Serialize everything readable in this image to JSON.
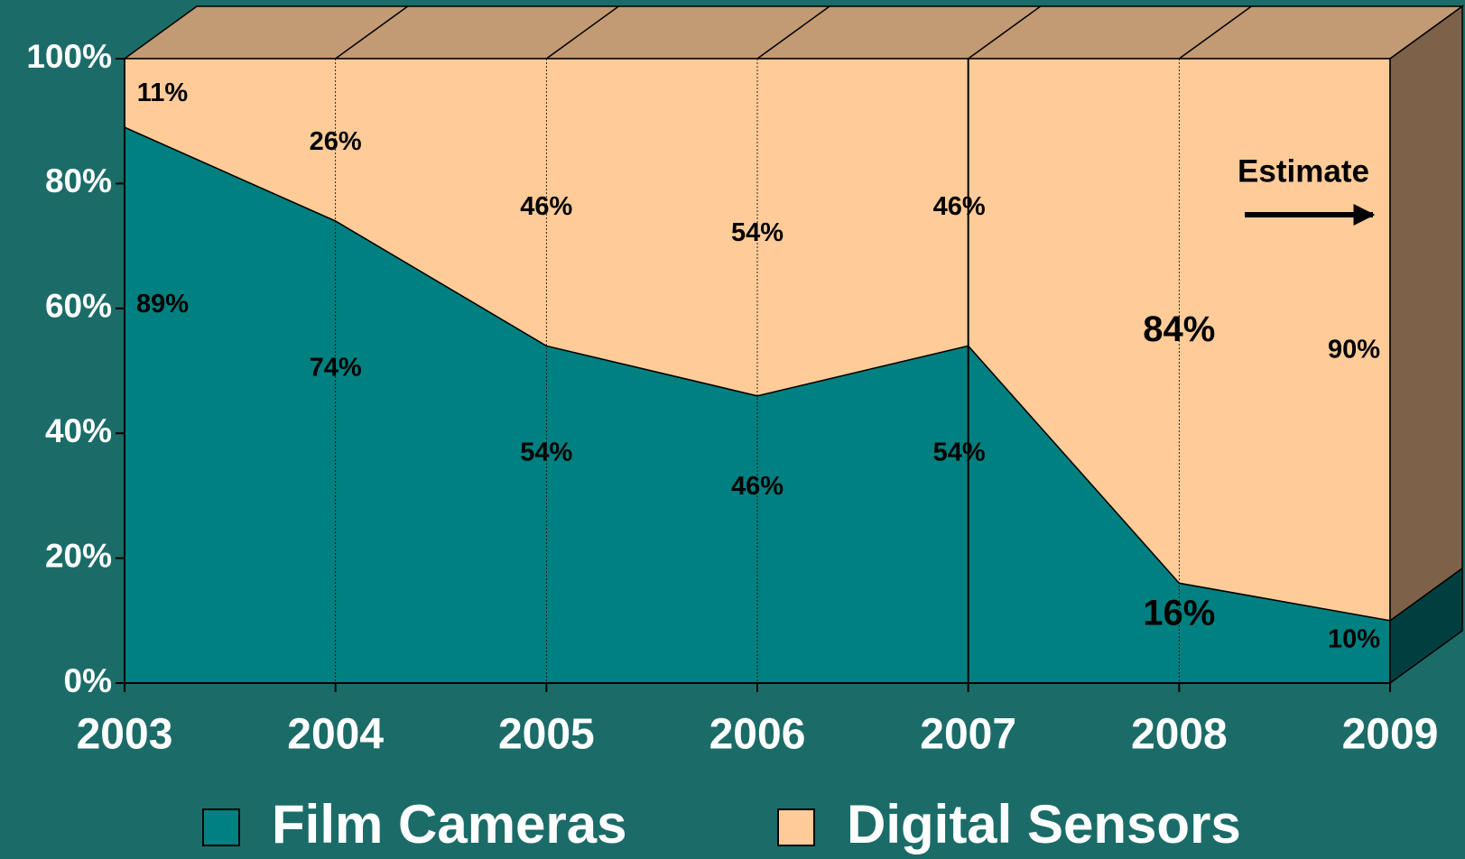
{
  "chart_data": {
    "type": "area",
    "stacked": true,
    "categories": [
      "2003",
      "2004",
      "2005",
      "2006",
      "2007",
      "2008",
      "2009"
    ],
    "series": [
      {
        "name": "Film Cameras",
        "color": "#008080",
        "values": [
          89,
          74,
          54,
          46,
          54,
          16,
          10
        ],
        "value_labels": [
          "89%",
          "74%",
          "54%",
          "46%",
          "54%",
          "16%",
          "10%"
        ]
      },
      {
        "name": "Digital Sensors",
        "color": "#ffcc99",
        "values": [
          11,
          26,
          46,
          54,
          46,
          84,
          90
        ],
        "value_labels": [
          "11%",
          "26%",
          "46%",
          "54%",
          "46%",
          "84%",
          "90%"
        ]
      }
    ],
    "ylim": [
      0,
      100
    ],
    "yticks": [
      {
        "value": 0,
        "label": "0%"
      },
      {
        "value": 20,
        "label": "20%"
      },
      {
        "value": 40,
        "label": "40%"
      },
      {
        "value": 60,
        "label": "60%"
      },
      {
        "value": 80,
        "label": "80%"
      },
      {
        "value": 100,
        "label": "100%"
      }
    ],
    "annotation": "Estimate",
    "legend": "bottom"
  }
}
